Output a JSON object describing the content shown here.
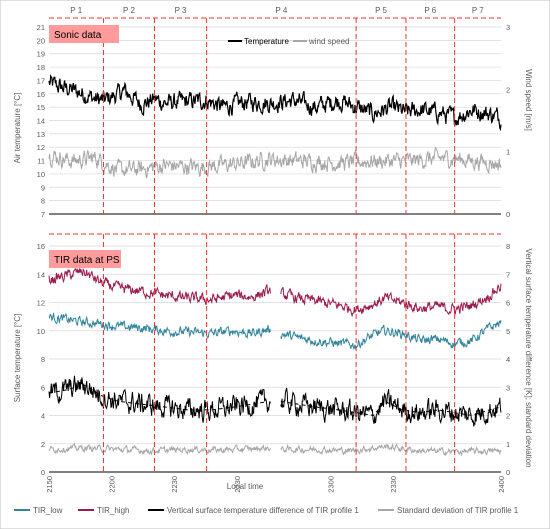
{
  "colors": {
    "temperature": "#000000",
    "wind_speed": "#a6a6a6",
    "tir_low": "#31849b",
    "tir_high": "#9b1b4e",
    "vertical_diff": "#000000",
    "std_dev": "#a6a6a6",
    "period_line": "#ff2f2f",
    "label_box": "#ff9b9b",
    "grid": "#d9d9d9"
  },
  "chart_data": [
    {
      "type": "line",
      "panel": "top",
      "title": "Sonic data",
      "ylabel": "Air temperature [°C]",
      "y2label": "Wind speed [m/s]",
      "ylim": [
        7,
        21
      ],
      "y2lim": [
        0,
        3
      ],
      "yticks": [
        7,
        8,
        9,
        10,
        11,
        12,
        13,
        14,
        15,
        16,
        17,
        18,
        19,
        20,
        21
      ],
      "y2ticks": [
        0,
        1,
        2,
        3
      ],
      "legend": "top-right",
      "periods": [
        {
          "label": "P 1",
          "start": 0,
          "end": 47
        },
        {
          "label": "P 2",
          "start": 47,
          "end": 91
        },
        {
          "label": "P 3",
          "start": 91,
          "end": 136
        },
        {
          "label": "P 4",
          "start": 136,
          "end": 265
        },
        {
          "label": "P 5",
          "start": 265,
          "end": 308
        },
        {
          "label": "P 6",
          "start": 308,
          "end": 350
        },
        {
          "label": "P 7",
          "start": 350,
          "end": 390
        }
      ],
      "series": [
        {
          "name": "Temperature",
          "axis": "left",
          "style": "noisy",
          "x": [
            0,
            10,
            20,
            30,
            40,
            47,
            55,
            65,
            80,
            91,
            100,
            115,
            136,
            150,
            170,
            190,
            210,
            230,
            250,
            265,
            280,
            295,
            308,
            320,
            335,
            350,
            365,
            380,
            390
          ],
          "y": [
            16.8,
            16.5,
            16.3,
            16.0,
            15.6,
            15.5,
            15.8,
            16.2,
            15.2,
            15.6,
            15.3,
            15.4,
            15.5,
            15.0,
            15.4,
            15.3,
            15.5,
            15.0,
            15.5,
            15.0,
            14.5,
            15.0,
            14.6,
            14.8,
            14.6,
            14.2,
            14.8,
            14.5,
            14.2
          ],
          "amplitude": 0.6
        },
        {
          "name": "wind speed",
          "axis": "right",
          "style": "noisy",
          "x": [
            0,
            20,
            40,
            60,
            80,
            100,
            130,
            160,
            190,
            220,
            250,
            280,
            310,
            340,
            370,
            390
          ],
          "y": [
            0.95,
            0.85,
            0.9,
            0.7,
            0.72,
            0.78,
            0.75,
            0.8,
            0.88,
            0.85,
            0.82,
            0.85,
            0.85,
            0.9,
            0.85,
            0.8
          ],
          "amplitude": 0.12
        }
      ]
    },
    {
      "type": "line",
      "panel": "bottom",
      "title": "TIR data at PS",
      "ylabel": "Surface temperature [°C]",
      "y2label": "Vertical surface temperature difference [K]; standard deviation",
      "xlabel": "Local time",
      "xticks": [
        {
          "x": 0,
          "label": "2150"
        },
        {
          "x": 54,
          "label": "2200"
        },
        {
          "x": 108,
          "label": "2230"
        },
        {
          "x": 162,
          "label": "2230"
        },
        {
          "x": 243,
          "label": "2300"
        },
        {
          "x": 297,
          "label": "2330"
        },
        {
          "x": 390,
          "label": "2400"
        }
      ],
      "ylim": [
        0,
        16
      ],
      "y2lim": [
        0,
        8
      ],
      "yticks": [
        0,
        2,
        4,
        6,
        8,
        10,
        12,
        14,
        16
      ],
      "y2ticks": [
        0,
        1,
        2,
        3,
        4,
        5,
        6,
        7,
        8
      ],
      "legend": "bottom",
      "gap": [
        191,
        200
      ],
      "series": [
        {
          "name": "TIR_low",
          "axis": "left",
          "style": "noisy",
          "x": [
            0,
            15,
            30,
            45,
            60,
            80,
            100,
            120,
            140,
            160,
            175,
            190,
            200,
            215,
            230,
            250,
            265,
            280,
            290,
            305,
            320,
            335,
            350,
            365,
            380,
            390
          ],
          "y": [
            11.0,
            10.8,
            10.6,
            10.5,
            10.3,
            10.2,
            10.0,
            9.9,
            9.8,
            10.0,
            9.8,
            10.1,
            9.8,
            9.5,
            9.3,
            9.1,
            9.0,
            9.7,
            10.0,
            9.8,
            9.3,
            9.4,
            9.1,
            9.3,
            10.2,
            10.6
          ],
          "amplitude": 0.3
        },
        {
          "name": "TIR_high",
          "axis": "left",
          "style": "noisy",
          "x": [
            0,
            15,
            30,
            45,
            60,
            80,
            100,
            120,
            140,
            160,
            175,
            190,
            200,
            215,
            230,
            250,
            265,
            280,
            290,
            305,
            320,
            335,
            350,
            365,
            380,
            390
          ],
          "y": [
            13.6,
            13.9,
            14.2,
            13.4,
            13.0,
            12.8,
            12.5,
            12.3,
            12.2,
            12.5,
            12.4,
            12.8,
            12.6,
            12.3,
            12.1,
            11.8,
            11.5,
            11.9,
            12.3,
            12.0,
            11.6,
            11.7,
            11.5,
            11.8,
            12.5,
            13.2
          ],
          "amplitude": 0.35
        },
        {
          "name": "Vertical surface temperature difference of TIR profile 1",
          "axis": "right",
          "style": "noisy",
          "x": [
            0,
            15,
            30,
            45,
            60,
            80,
            100,
            120,
            140,
            160,
            175,
            190,
            200,
            215,
            230,
            250,
            265,
            280,
            290,
            305,
            320,
            335,
            350,
            365,
            380,
            390
          ],
          "y": [
            2.8,
            2.9,
            3.1,
            2.7,
            2.5,
            2.4,
            2.3,
            2.2,
            2.2,
            2.3,
            2.4,
            2.5,
            2.5,
            2.4,
            2.3,
            2.2,
            2.1,
            2.0,
            2.5,
            2.2,
            2.1,
            2.2,
            2.1,
            2.0,
            2.2,
            2.3
          ],
          "amplitude": 0.35
        },
        {
          "name": "Standard deviation of TIR profile 1",
          "axis": "right",
          "style": "noisy",
          "x": [
            0,
            30,
            60,
            90,
            120,
            150,
            190,
            200,
            230,
            260,
            290,
            320,
            350,
            390
          ],
          "y": [
            0.8,
            0.85,
            0.8,
            0.75,
            0.8,
            0.78,
            0.85,
            0.8,
            0.8,
            0.75,
            0.9,
            0.75,
            0.72,
            0.75
          ],
          "amplitude": 0.1
        }
      ]
    }
  ]
}
